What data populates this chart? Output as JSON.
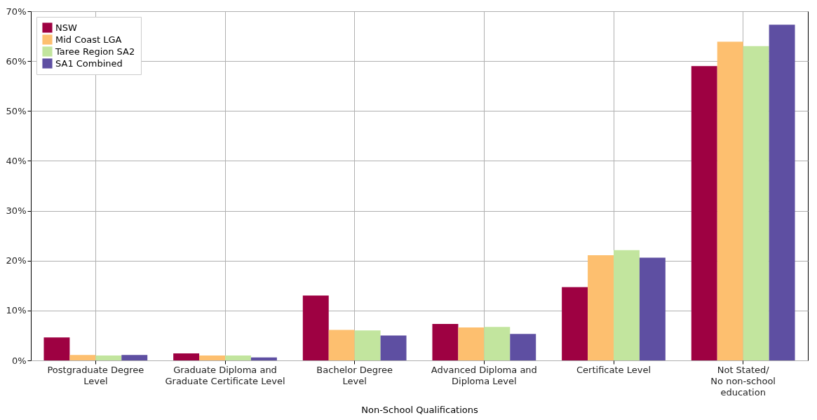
{
  "chart_data": {
    "type": "bar",
    "xlabel": "Non-School Qualifications",
    "categories": [
      "Postgraduate Degree\nLevel",
      "Graduate Diploma and\nGraduate Certificate Level",
      "Bachelor Degree\nLevel",
      "Advanced Diploma and\nDiploma Level",
      "Certificate Level",
      "Not Stated/\nNo non-school\neducation"
    ],
    "series": [
      {
        "name": "NSW",
        "color": "#9e0142",
        "values": [
          4.6,
          1.4,
          13.0,
          7.3,
          14.7,
          59.0
        ]
      },
      {
        "name": "Mid Coast LGA",
        "color": "#fdbf6f",
        "values": [
          1.1,
          1.0,
          6.1,
          6.6,
          21.1,
          63.9
        ]
      },
      {
        "name": "Taree Region SA2",
        "color": "#c2e59e",
        "values": [
          1.0,
          1.0,
          6.0,
          6.7,
          22.1,
          63.0
        ]
      },
      {
        "name": "SA1 Combined",
        "color": "#5e4fa2",
        "values": [
          1.1,
          0.6,
          5.0,
          5.3,
          20.6,
          67.3
        ]
      }
    ],
    "ylim": [
      0,
      70
    ],
    "yticks": [
      {
        "value": 0,
        "label": "0%"
      },
      {
        "value": 10,
        "label": "10%"
      },
      {
        "value": 20,
        "label": "20%"
      },
      {
        "value": 30,
        "label": "30%"
      },
      {
        "value": 40,
        "label": "40%"
      },
      {
        "value": 50,
        "label": "50%"
      },
      {
        "value": 60,
        "label": "60%"
      },
      {
        "value": 70,
        "label": "70%"
      }
    ],
    "grid": true,
    "legend": "top left"
  }
}
